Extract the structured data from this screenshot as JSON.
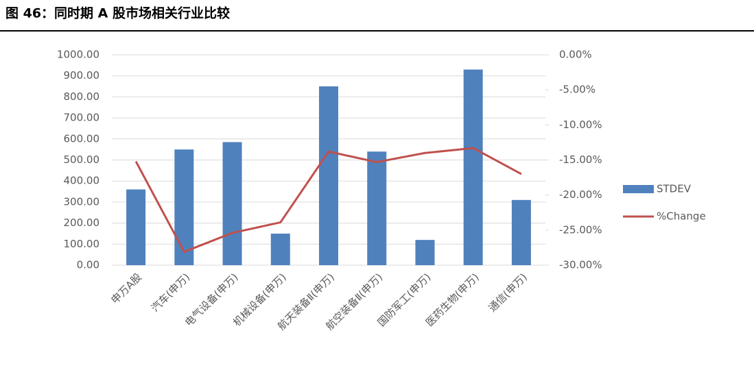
{
  "chart_data": {
    "type": "combo",
    "title": "图 46：同时期 A 股市场相关行业比较",
    "categories": [
      "申万A股",
      "汽车(申万)",
      "电气设备(申万)",
      "机械设备(申万)",
      "航天装备Ⅱ(申万)",
      "航空装备Ⅱ(申万)",
      "国防军工(申万)",
      "医药生物(申万)",
      "通信(申万)"
    ],
    "series": [
      {
        "name": "STDEV",
        "type": "bar",
        "color": "#4f81bd",
        "values": [
          360,
          550,
          585,
          150,
          850,
          540,
          120,
          930,
          310
        ]
      },
      {
        "name": "%Change",
        "type": "line",
        "axis": "y2",
        "color": "#c0504d",
        "values": [
          -15.2,
          -28.1,
          -25.4,
          -23.9,
          -13.8,
          -15.3,
          -14.0,
          -13.3,
          -17.0
        ]
      }
    ],
    "ylim": [
      0,
      1000
    ],
    "yticks": [
      {
        "value": 0,
        "label": "0.00"
      },
      {
        "value": 100,
        "label": "100.00"
      },
      {
        "value": 200,
        "label": "200.00"
      },
      {
        "value": 300,
        "label": "300.00"
      },
      {
        "value": 400,
        "label": "400.00"
      },
      {
        "value": 500,
        "label": "500.00"
      },
      {
        "value": 600,
        "label": "600.00"
      },
      {
        "value": 700,
        "label": "700.00"
      },
      {
        "value": 800,
        "label": "800.00"
      },
      {
        "value": 900,
        "label": "900.00"
      },
      {
        "value": 1000,
        "label": "1000.00"
      }
    ],
    "y2lim": [
      -30,
      0
    ],
    "y2ticks": [
      {
        "value": -30,
        "label": "-30.00%"
      },
      {
        "value": -25,
        "label": "-25.00%"
      },
      {
        "value": -20,
        "label": "-20.00%"
      },
      {
        "value": -15,
        "label": "-15.00%"
      },
      {
        "value": -10,
        "label": "-10.00%"
      },
      {
        "value": -5,
        "label": "-5.00%"
      },
      {
        "value": 0,
        "label": "0.00%"
      }
    ],
    "grid": true,
    "legend": "right"
  }
}
